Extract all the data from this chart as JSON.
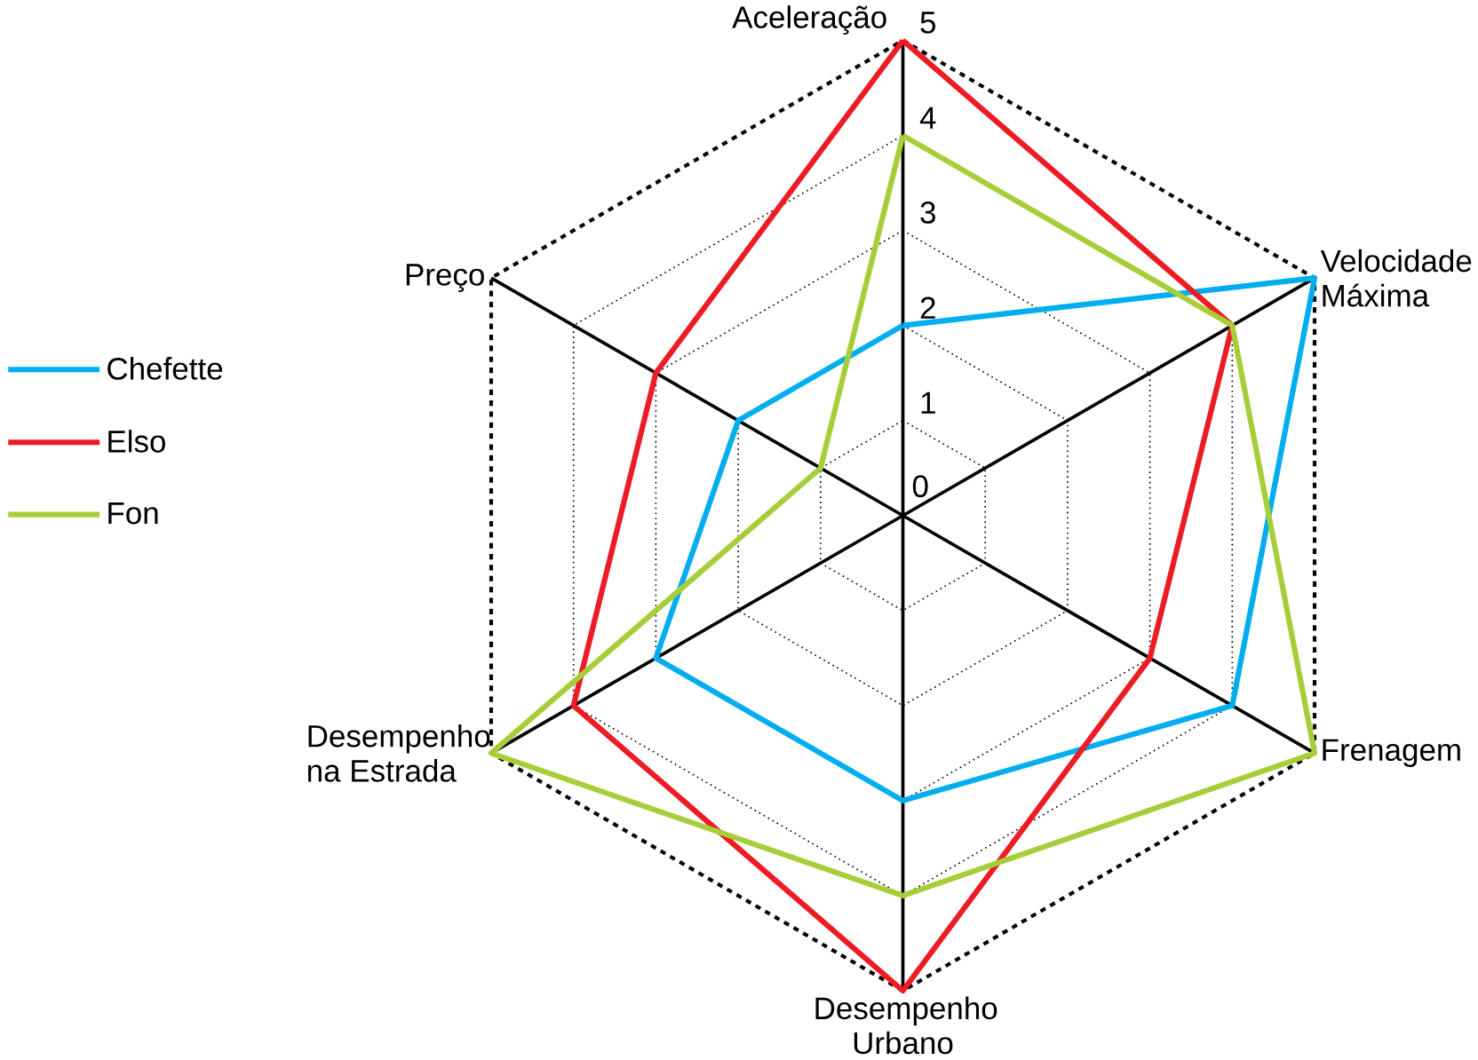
{
  "chart_data": {
    "type": "radar",
    "categories": [
      "Aceleração",
      "Velocidade Máxima",
      "Frenagem",
      "Desempenho Urbano",
      "Desempenho na Estrada",
      "Preço"
    ],
    "series": [
      {
        "name": "Chefette",
        "color": "#00aeef",
        "values": [
          2,
          5,
          4,
          3,
          3,
          2
        ]
      },
      {
        "name": "Elso",
        "color": "#ed1c24",
        "values": [
          5,
          4,
          3,
          5,
          4,
          3
        ]
      },
      {
        "name": "Fon",
        "color": "#a6ce39",
        "values": [
          4,
          4,
          5,
          4,
          5,
          1
        ]
      }
    ],
    "ylim": [
      0,
      5
    ],
    "yticks": [
      0,
      1,
      2,
      3,
      4,
      5
    ],
    "grid": true,
    "legend": "left"
  }
}
